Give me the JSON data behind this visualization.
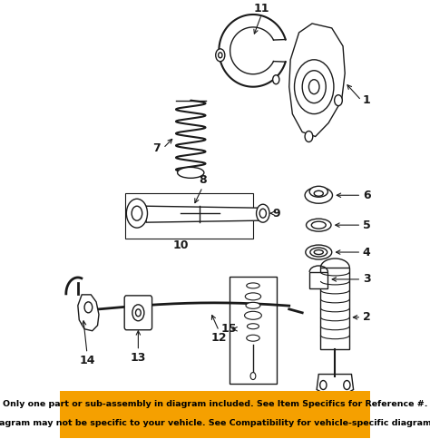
{
  "bg_color": "#ffffff",
  "footer_bg": "#f5a000",
  "footer_text1": "Only one part or sub-assembly in diagram included. See Item Specifics for Reference #.",
  "footer_text2": "Diagram may not be specific to your vehicle. See Compatibility for vehicle-specific diagrams.",
  "footer_fontsize": 6.8,
  "part_color": "#1a1a1a",
  "label_fontsize": 9,
  "lw": 1.0
}
